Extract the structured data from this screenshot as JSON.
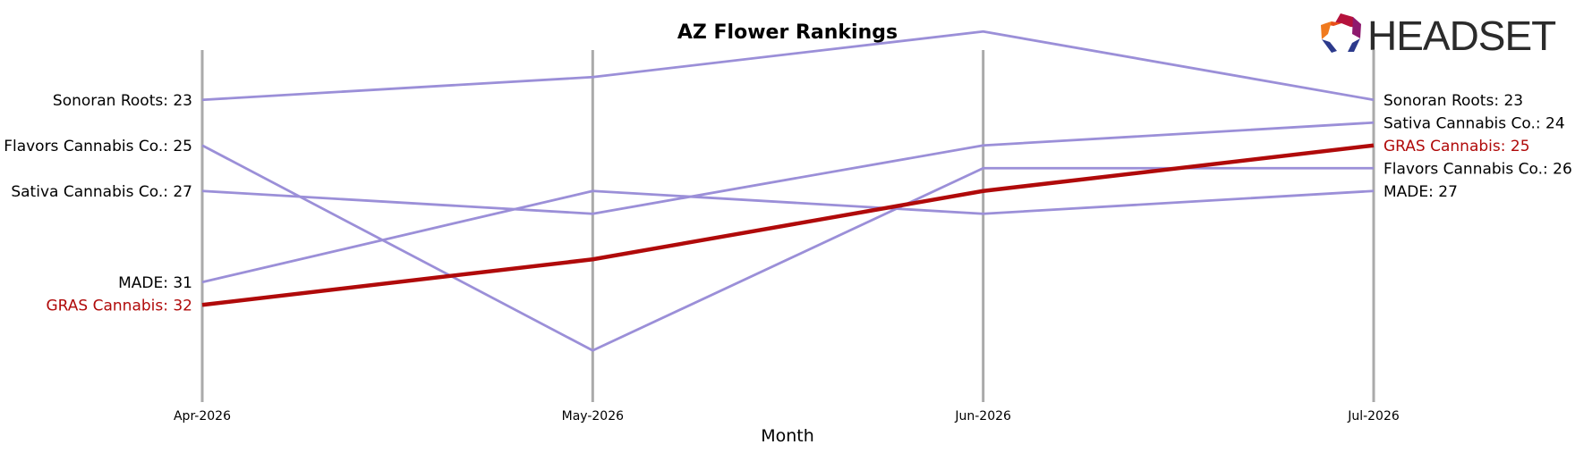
{
  "logo": {
    "text": "HEADSET"
  },
  "chart_data": {
    "type": "line",
    "title": "AZ Flower Rankings",
    "xlabel": "Month",
    "ylabel": "",
    "categories": [
      "Apr-2026",
      "May-2026",
      "Jun-2026",
      "Jul-2026"
    ],
    "ylim": [
      36.5,
      20.5
    ],
    "y_inverted": true,
    "grid": false,
    "highlight_color": "#b00a0a",
    "series_color": "#9b8fd8",
    "axis_line_color": "#aaaaaa",
    "series": [
      {
        "name": "Sonoran Roots",
        "values": [
          23,
          22,
          20,
          23
        ],
        "highlight": false,
        "start_label": "Sonoran Roots: 23",
        "end_label": "Sonoran Roots: 23"
      },
      {
        "name": "Sativa Cannabis Co.",
        "values": [
          27,
          28,
          25,
          24
        ],
        "highlight": false,
        "start_label": "Sativa Cannabis Co.: 27",
        "end_label": "Sativa Cannabis Co.: 24"
      },
      {
        "name": "Flavors Cannabis Co.",
        "values": [
          25,
          34,
          26,
          26
        ],
        "highlight": false,
        "start_label": "Flavors Cannabis Co.: 25",
        "end_label": "Flavors Cannabis Co.: 26"
      },
      {
        "name": "MADE",
        "values": [
          31,
          27,
          28,
          27
        ],
        "highlight": false,
        "start_label": "MADE: 31",
        "end_label": "MADE: 27"
      },
      {
        "name": "GRAS Cannabis",
        "values": [
          32,
          30,
          27,
          25
        ],
        "highlight": true,
        "start_label": "GRAS Cannabis: 32",
        "end_label": "GRAS Cannabis: 25"
      }
    ]
  }
}
